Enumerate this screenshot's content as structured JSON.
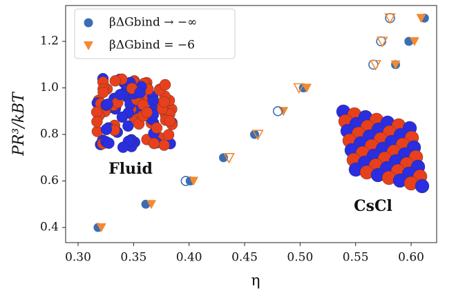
{
  "chart_data": {
    "type": "scatter",
    "xlabel": "η",
    "ylabel": "PR³/kBT",
    "xlim": [
      0.2888,
      0.623
    ],
    "ylim": [
      0.335,
      1.354
    ],
    "xticks": [
      {
        "value": 0.3,
        "label": "0.30"
      },
      {
        "value": 0.35,
        "label": "0.35"
      },
      {
        "value": 0.4,
        "label": "0.40"
      },
      {
        "value": 0.45,
        "label": "0.45"
      },
      {
        "value": 0.5,
        "label": "0.50"
      },
      {
        "value": 0.55,
        "label": "0.55"
      },
      {
        "value": 0.6,
        "label": "0.60"
      }
    ],
    "yticks": [
      0.4,
      0.6,
      0.8,
      {
        "value": 1.0,
        "label": "1.0"
      },
      1.2
    ],
    "legend": "upper-left",
    "annotations": [
      "Fluid",
      "CsCl"
    ],
    "series": [
      {
        "name": "βΔGbind → −∞",
        "color": "#3a6db5",
        "marker": "circle",
        "filled": true,
        "x": [
          0.318,
          0.361,
          0.401,
          0.431,
          0.459,
          0.503,
          0.586,
          0.598,
          0.612
        ],
        "values": [
          0.4,
          0.5,
          0.6,
          0.7,
          0.8,
          1.0,
          1.1,
          1.2,
          1.3
        ]
      },
      {
        "name": "βΔGbind = −6",
        "color": "#f28a30",
        "marker": "triangle",
        "filled": true,
        "x": [
          0.321,
          0.366,
          0.404,
          0.485,
          0.506,
          0.586,
          0.603,
          0.609
        ],
        "values": [
          0.4,
          0.5,
          0.6,
          0.9,
          1.0,
          1.1,
          1.2,
          1.3
        ]
      },
      {
        "color": "#3a6db5",
        "marker": "circle",
        "filled": false,
        "x": [
          0.397,
          0.48,
          0.566,
          0.573,
          0.581
        ],
        "values": [
          0.6,
          0.9,
          1.1,
          1.2,
          1.3
        ]
      },
      {
        "color": "#f28a30",
        "marker": "triangle",
        "filled": false,
        "x": [
          0.436,
          0.462,
          0.499,
          0.568,
          0.574,
          0.581
        ],
        "values": [
          0.7,
          0.8,
          1.0,
          1.1,
          1.2,
          1.3
        ]
      }
    ]
  }
}
